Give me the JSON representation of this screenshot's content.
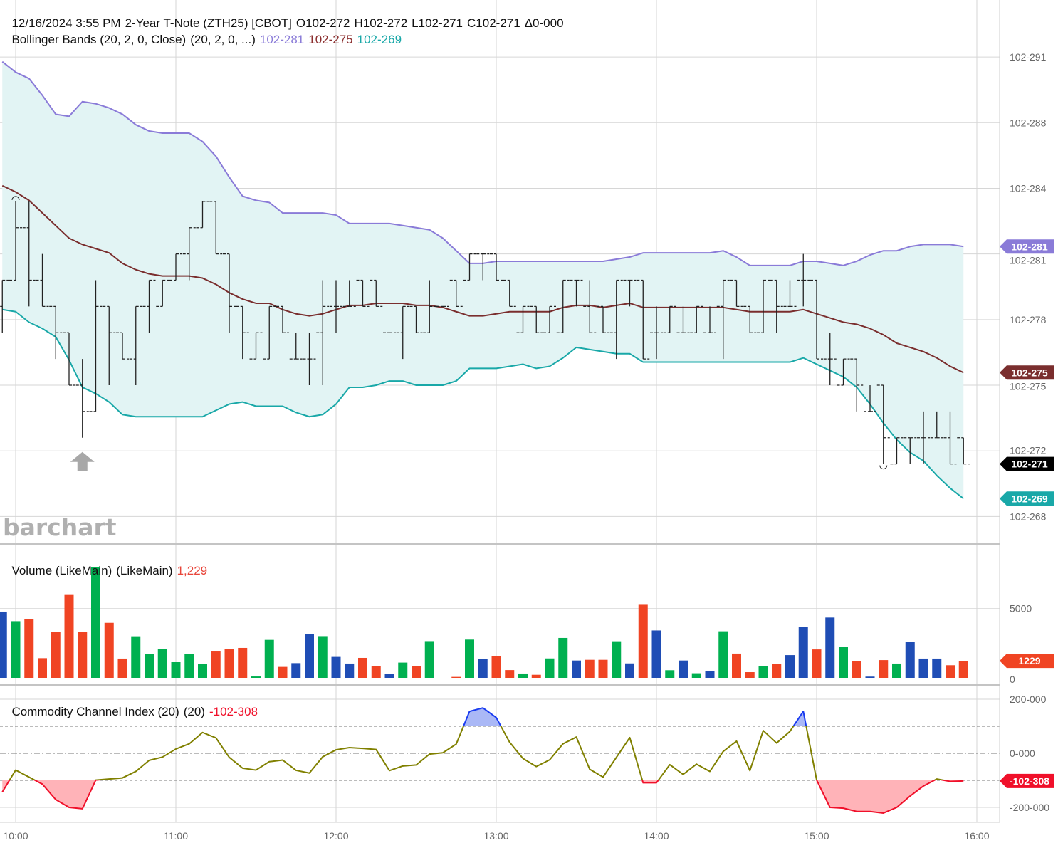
{
  "header": {
    "datetime": "12/16/2024 3:55 PM",
    "symbol": "2-Year T-Note (ZTH25) [CBOT]",
    "open": "O102-272",
    "high": "H102-272",
    "low": "L102-271",
    "close": "C102-271",
    "change": "Δ0-000"
  },
  "bollinger": {
    "label": "Bollinger Bands (20, 2, 0, Close)",
    "params": "(20, 2, 0, ...)",
    "upper": "102-281",
    "middle": "102-275",
    "lower": "102-269"
  },
  "last_price_badge": "102-271",
  "volume_panel": {
    "label": "Volume (LikeMain)",
    "params": "(LikeMain)",
    "value": "1,229",
    "badge": "1229"
  },
  "cci_panel": {
    "label": "Commodity Channel Index (20)",
    "params": "(20)",
    "value": "-102-308",
    "badge": "-102-308"
  },
  "logo": "barchart",
  "colors": {
    "bb_upper": "#8a7bd8",
    "bb_middle": "#7a2e2e",
    "bb_lower": "#19a8a8",
    "bb_fill": "#e2f4f4",
    "bars": "#222222",
    "last_price": "#000000",
    "vol_green": "#00b050",
    "vol_red": "#f04423",
    "vol_blue": "#1f4db5",
    "cci_line": "#808000",
    "cci_over": "#1a3cf0",
    "cci_over_fill": "#aab8f6",
    "cci_under": "#f0102a",
    "cci_under_fill": "#ffb3b8"
  },
  "time_axis": [
    "10:00",
    "11:00",
    "12:00",
    "13:00",
    "14:00",
    "15:00",
    "16:00"
  ],
  "chart_data": [
    {
      "type": "ohlc",
      "title": "2-Year T-Note (ZTH25) [CBOT]",
      "x": [
        "09:55",
        "10:00",
        "10:05",
        "10:10",
        "10:15",
        "10:20",
        "10:25",
        "10:30",
        "10:35",
        "10:40",
        "10:45",
        "10:50",
        "10:55",
        "11:00",
        "11:05",
        "11:10",
        "11:15",
        "11:20",
        "11:25",
        "11:30",
        "11:35",
        "11:40",
        "11:45",
        "11:50",
        "11:55",
        "12:00",
        "12:05",
        "12:10",
        "12:15",
        "12:20",
        "12:25",
        "12:30",
        "12:35",
        "12:40",
        "12:45",
        "12:50",
        "12:55",
        "13:00",
        "13:05",
        "13:10",
        "13:15",
        "13:20",
        "13:25",
        "13:30",
        "13:35",
        "13:40",
        "13:45",
        "13:50",
        "13:55",
        "14:00",
        "14:05",
        "14:10",
        "14:15",
        "14:20",
        "14:25",
        "14:30",
        "14:35",
        "14:40",
        "14:45",
        "14:50",
        "14:55",
        "15:00",
        "15:05",
        "15:10",
        "15:15",
        "15:20",
        "15:25",
        "15:30",
        "15:35",
        "15:40",
        "15:45",
        "15:50",
        "15:55"
      ],
      "open": [
        27.875,
        28,
        28.25,
        28,
        27.875,
        27.75,
        27.5,
        27.375,
        27.875,
        27.75,
        27.625,
        27.875,
        27.875,
        28,
        28.125,
        28.25,
        28.375,
        28.125,
        27.875,
        27.625,
        27.625,
        27.875,
        27.625,
        27.625,
        27.75,
        27.875,
        27.875,
        28,
        28,
        27.75,
        27.75,
        27.875,
        27.75,
        27.875,
        28,
        28,
        28.125,
        28.125,
        28,
        27.75,
        27.875,
        27.75,
        27.75,
        28,
        27.875,
        27.875,
        27.75,
        28,
        28,
        27.75,
        27.75,
        27.75,
        27.75,
        27.75,
        27.875,
        28,
        27.875,
        27.75,
        28,
        27.875,
        28,
        28,
        27.625,
        27.5,
        27.625,
        27.375,
        27.5,
        27.125,
        27.25,
        27.25,
        27.25,
        27.25,
        27.25
      ],
      "high": [
        28,
        28.375,
        28.375,
        28.125,
        27.875,
        27.75,
        27.625,
        28,
        27.875,
        27.75,
        27.875,
        28,
        28,
        28.125,
        28.25,
        28.375,
        28.375,
        28.125,
        27.875,
        27.75,
        27.875,
        27.875,
        27.75,
        27.75,
        28,
        28,
        28,
        28,
        28,
        27.75,
        27.875,
        27.875,
        28,
        27.875,
        28,
        28.125,
        28.125,
        28.125,
        28,
        27.875,
        27.875,
        27.875,
        28,
        28,
        28,
        27.875,
        28,
        28,
        28,
        27.875,
        27.875,
        27.875,
        27.875,
        27.875,
        28,
        28,
        27.875,
        28,
        28,
        28,
        28.125,
        28,
        27.75,
        27.625,
        27.625,
        27.5,
        27.5,
        27.25,
        27.25,
        27.375,
        27.375,
        27.375,
        27.25
      ],
      "low": [
        27.75,
        28,
        27.875,
        27.875,
        27.625,
        27.5,
        27.25,
        27.375,
        27.5,
        27.625,
        27.5,
        27.75,
        27.875,
        28,
        28,
        28.25,
        28.125,
        27.75,
        27.625,
        27.625,
        27.625,
        27.75,
        27.625,
        27.5,
        27.5,
        27.75,
        27.875,
        27.875,
        27.875,
        27.75,
        27.625,
        27.75,
        27.75,
        27.875,
        27.875,
        28,
        28,
        28,
        27.875,
        27.75,
        27.75,
        27.75,
        27.75,
        27.875,
        27.75,
        27.75,
        27.625,
        27.875,
        27.625,
        27.625,
        27.75,
        27.75,
        27.75,
        27.75,
        27.625,
        27.875,
        27.75,
        27.75,
        27.75,
        27.875,
        27.875,
        27.625,
        27.5,
        27.5,
        27.375,
        27.375,
        27.125,
        27.125,
        27.125,
        27.125,
        27.25,
        27.125,
        27.125
      ],
      "close": [
        28,
        28.25,
        28,
        27.875,
        27.75,
        27.5,
        27.375,
        27.875,
        27.75,
        27.625,
        27.875,
        28,
        28,
        28.125,
        28.25,
        28.375,
        28.125,
        27.875,
        27.75,
        27.75,
        27.875,
        27.75,
        27.625,
        27.625,
        27.875,
        27.875,
        27.875,
        27.875,
        27.875,
        27.75,
        27.875,
        27.75,
        27.875,
        27.875,
        27.875,
        28.125,
        28.125,
        28,
        27.875,
        27.875,
        27.75,
        27.875,
        28,
        28,
        27.75,
        27.75,
        28,
        28,
        27.625,
        27.75,
        27.875,
        27.75,
        27.875,
        27.75,
        28,
        27.875,
        27.75,
        28,
        27.875,
        27.875,
        28,
        27.625,
        27.625,
        27.625,
        27.5,
        27.375,
        27.25,
        27.25,
        27.25,
        27.25,
        27.25,
        27.125,
        27.125
      ],
      "bollinger_upper": [
        29.04,
        28.99,
        28.96,
        28.88,
        28.79,
        28.78,
        28.85,
        28.84,
        28.82,
        28.79,
        28.74,
        28.71,
        28.7,
        28.7,
        28.7,
        28.66,
        28.59,
        28.49,
        28.4,
        28.38,
        28.37,
        28.32,
        28.32,
        28.32,
        28.32,
        28.31,
        28.27,
        28.27,
        28.27,
        28.27,
        28.26,
        28.25,
        28.24,
        28.2,
        28.14,
        28.08,
        28.08,
        28.09,
        28.09,
        28.09,
        28.09,
        28.09,
        28.09,
        28.09,
        28.09,
        28.09,
        28.1,
        28.11,
        28.13,
        28.13,
        28.13,
        28.13,
        28.13,
        28.13,
        28.14,
        28.11,
        28.07,
        28.07,
        28.07,
        28.07,
        28.09,
        28.09,
        28.08,
        28.07,
        28.09,
        28.12,
        28.14,
        28.14,
        28.16,
        28.17,
        28.17,
        28.17,
        28.16
      ],
      "bollinger_middle": [
        28.45,
        28.42,
        28.38,
        28.32,
        28.26,
        28.2,
        28.17,
        28.15,
        28.13,
        28.08,
        28.05,
        28.03,
        28.02,
        28.02,
        28.02,
        28.01,
        27.98,
        27.94,
        27.91,
        27.89,
        27.89,
        27.86,
        27.84,
        27.83,
        27.84,
        27.86,
        27.88,
        27.88,
        27.89,
        27.89,
        27.89,
        27.88,
        27.88,
        27.87,
        27.85,
        27.83,
        27.83,
        27.84,
        27.85,
        27.85,
        27.85,
        27.85,
        27.87,
        27.88,
        27.88,
        27.87,
        27.88,
        27.89,
        27.87,
        27.87,
        27.87,
        27.87,
        27.87,
        27.87,
        27.87,
        27.86,
        27.85,
        27.85,
        27.85,
        27.85,
        27.86,
        27.84,
        27.82,
        27.8,
        27.79,
        27.77,
        27.74,
        27.7,
        27.68,
        27.66,
        27.63,
        27.59,
        27.56
      ],
      "bollinger_lower": [
        27.86,
        27.85,
        27.8,
        27.77,
        27.73,
        27.62,
        27.49,
        27.46,
        27.42,
        27.36,
        27.35,
        27.35,
        27.35,
        27.35,
        27.35,
        27.35,
        27.38,
        27.41,
        27.42,
        27.4,
        27.4,
        27.4,
        27.37,
        27.35,
        27.36,
        27.41,
        27.49,
        27.49,
        27.5,
        27.52,
        27.52,
        27.5,
        27.5,
        27.5,
        27.52,
        27.58,
        27.58,
        27.58,
        27.59,
        27.6,
        27.58,
        27.59,
        27.63,
        27.68,
        27.67,
        27.66,
        27.65,
        27.65,
        27.61,
        27.61,
        27.61,
        27.61,
        27.61,
        27.61,
        27.61,
        27.61,
        27.61,
        27.61,
        27.61,
        27.61,
        27.63,
        27.6,
        27.57,
        27.54,
        27.49,
        27.41,
        27.32,
        27.24,
        27.18,
        27.14,
        27.07,
        27.01,
        26.96
      ],
      "yticks": [
        {
          "label": "102-291",
          "value": 29.0625
        },
        {
          "label": "102-288",
          "value": 28.75
        },
        {
          "label": "102-284",
          "value": 28.4375
        },
        {
          "label": "102-281",
          "value": 28.125
        },
        {
          "label": "102-278",
          "value": 27.8125
        },
        {
          "label": "102-275",
          "value": 27.5
        },
        {
          "label": "102-272",
          "value": 27.1875
        },
        {
          "label": "102-268",
          "value": 26.875
        }
      ],
      "ylim": [
        26.8,
        29.3
      ],
      "grid": true
    },
    {
      "type": "bar",
      "title": "Volume (LikeMain)",
      "values": [
        4780,
        4090,
        4230,
        1420,
        3320,
        6030,
        3340,
        7980,
        3970,
        1390,
        3000,
        1700,
        2070,
        1130,
        1710,
        990,
        1900,
        2090,
        2160,
        100,
        2740,
        790,
        1060,
        3150,
        3010,
        1510,
        1030,
        1440,
        840,
        270,
        1100,
        860,
        2650,
        0,
        70,
        2760,
        1350,
        1560,
        560,
        310,
        220,
        1400,
        2880,
        1250,
        1300,
        1300,
        2640,
        1040,
        5270,
        3420,
        550,
        1250,
        330,
        510,
        3360,
        1750,
        410,
        870,
        990,
        1640,
        3660,
        2050,
        4350,
        2230,
        1220,
        90,
        1280,
        1030,
        2620,
        1390,
        1390,
        910,
        1229
      ],
      "bar_colors": [
        "blue",
        "green",
        "red",
        "red",
        "red",
        "red",
        "red",
        "green",
        "red",
        "red",
        "green",
        "green",
        "green",
        "green",
        "green",
        "green",
        "red",
        "red",
        "red",
        "green",
        "green",
        "red",
        "blue",
        "blue",
        "green",
        "blue",
        "blue",
        "red",
        "red",
        "blue",
        "green",
        "red",
        "green",
        "red",
        "red",
        "green",
        "blue",
        "red",
        "red",
        "green",
        "red",
        "green",
        "green",
        "blue",
        "red",
        "red",
        "green",
        "blue",
        "red",
        "blue",
        "green",
        "blue",
        "green",
        "blue",
        "green",
        "red",
        "red",
        "green",
        "red",
        "blue",
        "blue",
        "red",
        "blue",
        "green",
        "red",
        "blue",
        "red",
        "green",
        "blue",
        "blue",
        "blue",
        "red",
        "red"
      ],
      "yticks": [
        {
          "label": "5000",
          "value": 5000
        },
        {
          "label": "0",
          "value": 0
        }
      ],
      "ylim": [
        0,
        8200
      ]
    },
    {
      "type": "line",
      "title": "Commodity Channel Index (20)",
      "values": [
        -143,
        -62,
        -88,
        -114,
        -171,
        -200,
        -205,
        -99,
        -95,
        -91,
        -67,
        -26,
        -14,
        16,
        35,
        77,
        57,
        -15,
        -55,
        -62,
        -31,
        -25,
        -63,
        -73,
        -13,
        13,
        21,
        18,
        14,
        -64,
        -47,
        -43,
        -3,
        2,
        34,
        155,
        168,
        132,
        41,
        -19,
        -49,
        -24,
        35,
        60,
        -59,
        -88,
        -15,
        58,
        -109,
        -109,
        -42,
        -78,
        -40,
        -67,
        7,
        45,
        -64,
        84,
        38,
        81,
        155,
        -99,
        -200,
        -203,
        -215,
        -215,
        -221,
        -200,
        -158,
        -121,
        -95,
        -104,
        -102.308
      ],
      "yticks": [
        {
          "label": "200-000",
          "value": 200
        },
        {
          "label": "0-000",
          "value": 0
        },
        {
          "label": "-200-000",
          "value": -200
        }
      ],
      "reference_lines": [
        100,
        0,
        -100
      ],
      "ylim": [
        -250,
        250
      ]
    }
  ]
}
